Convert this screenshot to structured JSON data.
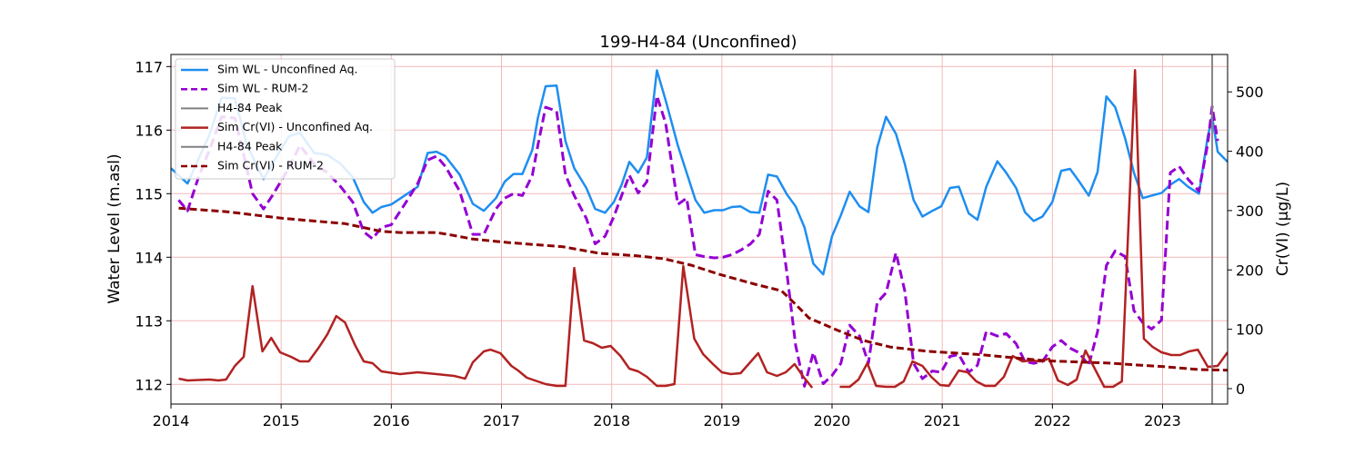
{
  "chart_data": {
    "type": "line",
    "title": "199-H4-84 (Unconfined)",
    "ylabel": "Water Level (m.asl)",
    "y2label": "Cr(VI) (µg/L)",
    "xlim": [
      2014,
      2023.59
    ],
    "xticks": [
      2014,
      2015,
      2016,
      2017,
      2018,
      2019,
      2020,
      2021,
      2022,
      2023
    ],
    "ylim": [
      111.69,
      117.19
    ],
    "yticks": [
      112,
      113,
      114,
      115,
      116,
      117
    ],
    "y2lim": [
      -26,
      563
    ],
    "y2ticks": [
      0,
      100,
      200,
      300,
      400,
      500
    ],
    "grid": true,
    "legend": "upper left",
    "series": [
      {
        "name": "Sim WL - Unconfined Aq.",
        "color": "#1e8ef0",
        "dash": false,
        "x": [
          2014.0,
          2014.15,
          2014.35,
          2014.46,
          2014.58,
          2014.69,
          2014.84,
          2014.92,
          2015.07,
          2015.17,
          2015.3,
          2015.42,
          2015.54,
          2015.65,
          2015.75,
          2015.83,
          2015.91,
          2016.0,
          2016.12,
          2016.24,
          2016.33,
          2016.41,
          2016.49,
          2016.62,
          2016.74,
          2016.84,
          2016.95,
          2017.03,
          2017.11,
          2017.19,
          2017.28,
          2017.33,
          2017.4,
          2017.5,
          2017.58,
          2017.66,
          2017.77,
          2017.85,
          2017.94,
          2018.02,
          2018.09,
          2018.16,
          2018.24,
          2018.32,
          2018.41,
          2018.49,
          2018.6,
          2018.68,
          2018.76,
          2018.84,
          2018.93,
          2019.01,
          2019.09,
          2019.17,
          2019.26,
          2019.34,
          2019.42,
          2019.5,
          2019.59,
          2019.67,
          2019.75,
          2019.83,
          2019.92,
          2020.0,
          2020.08,
          2020.16,
          2020.25,
          2020.33,
          2020.41,
          2020.49,
          2020.58,
          2020.66,
          2020.74,
          2020.82,
          2020.91,
          2020.99,
          2021.07,
          2021.15,
          2021.24,
          2021.32,
          2021.4,
          2021.5,
          2021.58,
          2021.67,
          2021.75,
          2021.83,
          2021.91,
          2022.0,
          2022.08,
          2022.16,
          2022.24,
          2022.33,
          2022.41,
          2022.49,
          2022.57,
          2022.66,
          2022.74,
          2022.82,
          2022.9,
          2022.99,
          2023.07,
          2023.15,
          2023.23,
          2023.33,
          2023.41,
          2023.45,
          2023.5,
          2023.59
        ],
        "values": [
          115.4,
          115.16,
          115.93,
          116.51,
          116.5,
          115.76,
          115.23,
          115.47,
          115.9,
          115.96,
          115.64,
          115.61,
          115.47,
          115.26,
          114.87,
          114.7,
          114.79,
          114.83,
          114.97,
          115.11,
          115.64,
          115.66,
          115.59,
          115.3,
          114.84,
          114.73,
          114.93,
          115.19,
          115.31,
          115.31,
          115.69,
          116.19,
          116.69,
          116.7,
          115.83,
          115.4,
          115.09,
          114.76,
          114.7,
          114.87,
          115.14,
          115.5,
          115.33,
          115.57,
          116.94,
          116.47,
          115.76,
          115.33,
          114.9,
          114.7,
          114.74,
          114.74,
          114.79,
          114.8,
          114.71,
          114.7,
          115.3,
          115.27,
          114.99,
          114.8,
          114.47,
          113.9,
          113.73,
          114.33,
          114.66,
          115.03,
          114.8,
          114.71,
          115.73,
          116.21,
          115.94,
          115.47,
          114.9,
          114.64,
          114.73,
          114.8,
          115.09,
          115.11,
          114.69,
          114.59,
          115.11,
          115.51,
          115.33,
          115.09,
          114.71,
          114.57,
          114.64,
          114.87,
          115.36,
          115.39,
          115.2,
          114.97,
          115.34,
          116.53,
          116.36,
          115.87,
          115.33,
          114.93,
          114.97,
          115.01,
          115.14,
          115.23,
          115.11,
          115.0,
          115.9,
          116.21,
          115.66,
          115.5
        ]
      },
      {
        "name": "Sim WL - RUM-2",
        "color": "#9400d3",
        "dash": true,
        "x": [
          2014.07,
          2014.15,
          2014.25,
          2014.35,
          2014.46,
          2014.58,
          2014.66,
          2014.74,
          2014.84,
          2014.92,
          2015.07,
          2015.17,
          2015.3,
          2015.42,
          2015.54,
          2015.65,
          2015.75,
          2015.83,
          2015.91,
          2016.0,
          2016.12,
          2016.24,
          2016.33,
          2016.41,
          2016.49,
          2016.62,
          2016.74,
          2016.84,
          2016.95,
          2017.03,
          2017.11,
          2017.19,
          2017.28,
          2017.33,
          2017.4,
          2017.5,
          2017.58,
          2017.66,
          2017.77,
          2017.85,
          2017.94,
          2018.02,
          2018.09,
          2018.16,
          2018.24,
          2018.32,
          2018.41,
          2018.49,
          2018.6,
          2018.68,
          2018.76,
          2018.84,
          2018.93,
          2019.01,
          2019.09,
          2019.17,
          2019.26,
          2019.34,
          2019.42,
          2019.5,
          2019.59,
          2019.67,
          2019.75,
          2019.83,
          2019.92,
          2020.0,
          2020.08,
          2020.16,
          2020.25,
          2020.33,
          2020.41,
          2020.49,
          2020.58,
          2020.66,
          2020.74,
          2020.82,
          2020.91,
          2020.99,
          2021.07,
          2021.15,
          2021.24,
          2021.32,
          2021.4,
          2021.5,
          2021.58,
          2021.67,
          2021.75,
          2021.83,
          2021.91,
          2022.0,
          2022.08,
          2022.16,
          2022.24,
          2022.33,
          2022.41,
          2022.49,
          2022.57,
          2022.66,
          2022.74,
          2022.82,
          2022.9,
          2022.99,
          2023.07,
          2023.15,
          2023.23,
          2023.33,
          2023.41,
          2023.45,
          2023.5
        ],
        "values": [
          114.9,
          114.73,
          115.26,
          115.69,
          116.21,
          116.19,
          115.61,
          115.0,
          114.76,
          114.97,
          115.4,
          115.76,
          115.47,
          115.33,
          115.11,
          114.87,
          114.4,
          114.29,
          114.47,
          114.51,
          114.83,
          115.16,
          115.53,
          115.59,
          115.43,
          115.04,
          114.36,
          114.36,
          114.76,
          114.93,
          115.0,
          114.97,
          115.29,
          115.76,
          116.36,
          116.3,
          115.3,
          114.97,
          114.61,
          114.21,
          114.33,
          114.64,
          114.97,
          115.29,
          115.01,
          115.19,
          116.54,
          116.11,
          114.83,
          114.93,
          114.04,
          114.01,
          113.99,
          114.0,
          114.04,
          114.11,
          114.21,
          114.36,
          115.04,
          114.9,
          113.76,
          112.61,
          111.97,
          112.5,
          112.01,
          112.14,
          112.33,
          112.93,
          112.76,
          112.33,
          113.29,
          113.44,
          114.07,
          113.47,
          112.33,
          112.09,
          112.21,
          112.19,
          112.44,
          112.47,
          112.19,
          112.3,
          112.83,
          112.76,
          112.8,
          112.64,
          112.36,
          112.33,
          112.36,
          112.59,
          112.69,
          112.57,
          112.5,
          112.3,
          112.83,
          113.87,
          114.1,
          114.01,
          113.16,
          112.97,
          112.87,
          113.01,
          115.33,
          115.43,
          115.23,
          115.04,
          115.79,
          116.37,
          115.83
        ]
      },
      {
        "name": "H4-84 Peak",
        "color": "#808080",
        "vline": 2023.45
      },
      {
        "name": "Sim Cr(VI) - Unconfined Aq.",
        "color": "#b22222",
        "dash": false,
        "axis": "y2",
        "x": [
          2014.07,
          2014.15,
          2014.35,
          2014.43,
          2014.5,
          2014.58,
          2014.66,
          2014.74,
          2014.83,
          2014.91,
          2014.99,
          2015.09,
          2015.17,
          2015.25,
          2015.34,
          2015.42,
          2015.5,
          2015.58,
          2015.67,
          2015.75,
          2015.83,
          2015.91,
          2016.08,
          2016.24,
          2016.41,
          2016.57,
          2016.67,
          2016.74,
          2016.84,
          2016.9,
          2016.99,
          2017.09,
          2017.15,
          2017.23,
          2017.4,
          2017.5,
          2017.58,
          2017.66,
          2017.75,
          2017.83,
          2017.91,
          2017.99,
          2018.08,
          2018.16,
          2018.24,
          2018.32,
          2018.41,
          2018.49,
          2018.57,
          2018.65,
          2018.75,
          2018.83,
          2018.92,
          2019.0,
          2019.08,
          2019.17,
          2019.25,
          2019.33,
          2019.41,
          2019.5,
          2019.58,
          2019.66,
          2019.74,
          2019.82,
          2019.95,
          2020.07,
          2020.16,
          2020.24,
          2020.32,
          2020.4,
          2020.49,
          2020.57,
          2020.65,
          2020.73,
          2020.82,
          2020.9,
          2020.98,
          2021.06,
          2021.15,
          2021.23,
          2021.31,
          2021.39,
          2021.48,
          2021.56,
          2021.64,
          2021.73,
          2021.81,
          2021.89,
          2021.97,
          2022.05,
          2022.14,
          2022.22,
          2022.3,
          2022.38,
          2022.47,
          2022.55,
          2022.63,
          2022.75,
          2022.83,
          2022.91,
          2022.99,
          2023.08,
          2023.16,
          2023.24,
          2023.32,
          2023.41,
          2023.5,
          2023.59
        ],
        "values": [
          16.8,
          13.8,
          15.3,
          13.8,
          15.3,
          38.2,
          53.5,
          172.8,
          62.7,
          85.6,
          61.2,
          53.5,
          45.9,
          45.9,
          68.8,
          91.7,
          122.3,
          111.6,
          73.4,
          45.9,
          42.8,
          29.1,
          24.5,
          27.5,
          24.5,
          21.4,
          16.8,
          44.3,
          62.7,
          65.7,
          59.6,
          38.2,
          30.6,
          18.3,
          7.6,
          4.6,
          4.6,
          203.4,
          81.0,
          76.5,
          68.8,
          71.9,
          55.0,
          33.6,
          29.1,
          19.9,
          4.6,
          4.6,
          7.6,
          206.4,
          84.1,
          58.1,
          41.3,
          27.5,
          24.5,
          26.0,
          42.8,
          59.6,
          27.5,
          21.4,
          27.5,
          41.3,
          19.9,
          1.5,
          null,
          3.1,
          3.1,
          15.3,
          42.8,
          4.6,
          3.1,
          3.1,
          12.2,
          45.9,
          38.2,
          19.9,
          6.1,
          4.6,
          30.6,
          27.5,
          12.2,
          4.6,
          4.6,
          19.9,
          55.0,
          45.9,
          47.4,
          45.9,
          50.5,
          13.8,
          6.1,
          15.3,
          64.2,
          35.2,
          3.1,
          3.1,
          12.2,
          536.7,
          84.1,
          70.3,
          61.2,
          56.6,
          56.6,
          62.7,
          65.7,
          36.7,
          38.2,
          61.2
        ]
      },
      {
        "name": "H4-84 Peak",
        "color": "#808080",
        "vline": 2023.45,
        "axis": "y2"
      },
      {
        "name": "Sim Cr(VI) - RUM-2",
        "color": "#8b0000",
        "dash": true,
        "axis": "y2",
        "x": [
          2014.07,
          2014.51,
          2015.01,
          2015.58,
          2015.91,
          2016.08,
          2016.41,
          2016.57,
          2016.74,
          2017.07,
          2017.56,
          2017.89,
          2018.22,
          2018.47,
          2018.72,
          2018.97,
          2019.3,
          2019.54,
          2019.67,
          2019.79,
          2020.04,
          2020.29,
          2020.53,
          2020.86,
          2021.36,
          2021.94,
          2022.51,
          2023.01,
          2023.34,
          2023.59
        ],
        "values": [
          304,
          298,
          287,
          278,
          265,
          263,
          263,
          258,
          252,
          246,
          239,
          228,
          224,
          219,
          208,
          193,
          176,
          165,
          142,
          119,
          99,
          81,
          70,
          63,
          57,
          47,
          43,
          37,
          32,
          31
        ]
      }
    ]
  }
}
